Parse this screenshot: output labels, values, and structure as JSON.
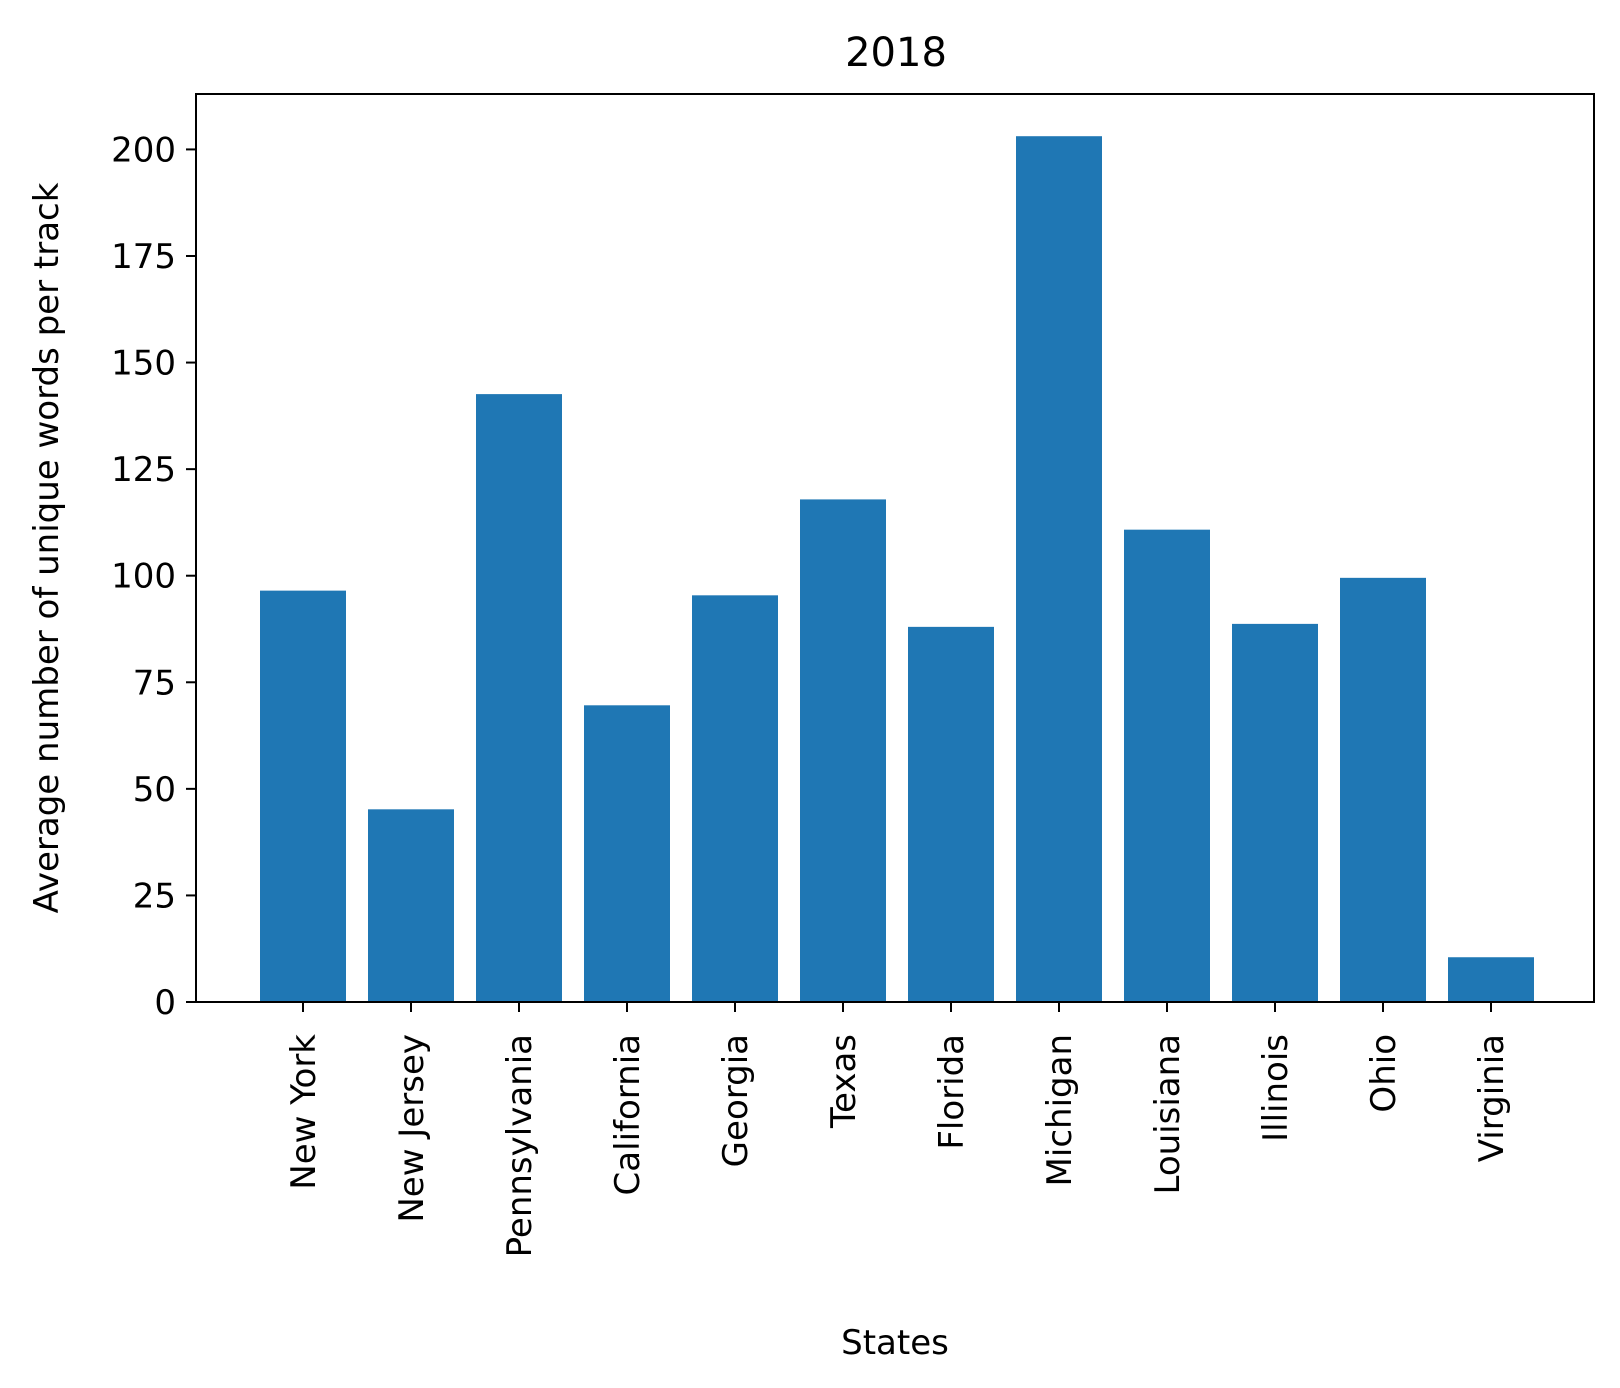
{
  "chart_data": {
    "type": "bar",
    "title": "2018",
    "xlabel": "States",
    "ylabel": "Average number of unique words per track",
    "categories": [
      "New York",
      "New Jersey",
      "Pennsylvania",
      "California",
      "Georgia",
      "Texas",
      "Florida",
      "Michigan",
      "Louisiana",
      "Illinois",
      "Ohio",
      "Virginia"
    ],
    "values": [
      96.5,
      45.2,
      142.6,
      69.6,
      95.4,
      117.9,
      88.0,
      203.1,
      110.8,
      88.7,
      99.5,
      10.5
    ],
    "ylim": [
      0,
      213
    ],
    "yticks": [
      0,
      25,
      50,
      75,
      100,
      125,
      150,
      175,
      200
    ],
    "bar_color": "#1f77b4",
    "grid": false,
    "legend": null
  }
}
